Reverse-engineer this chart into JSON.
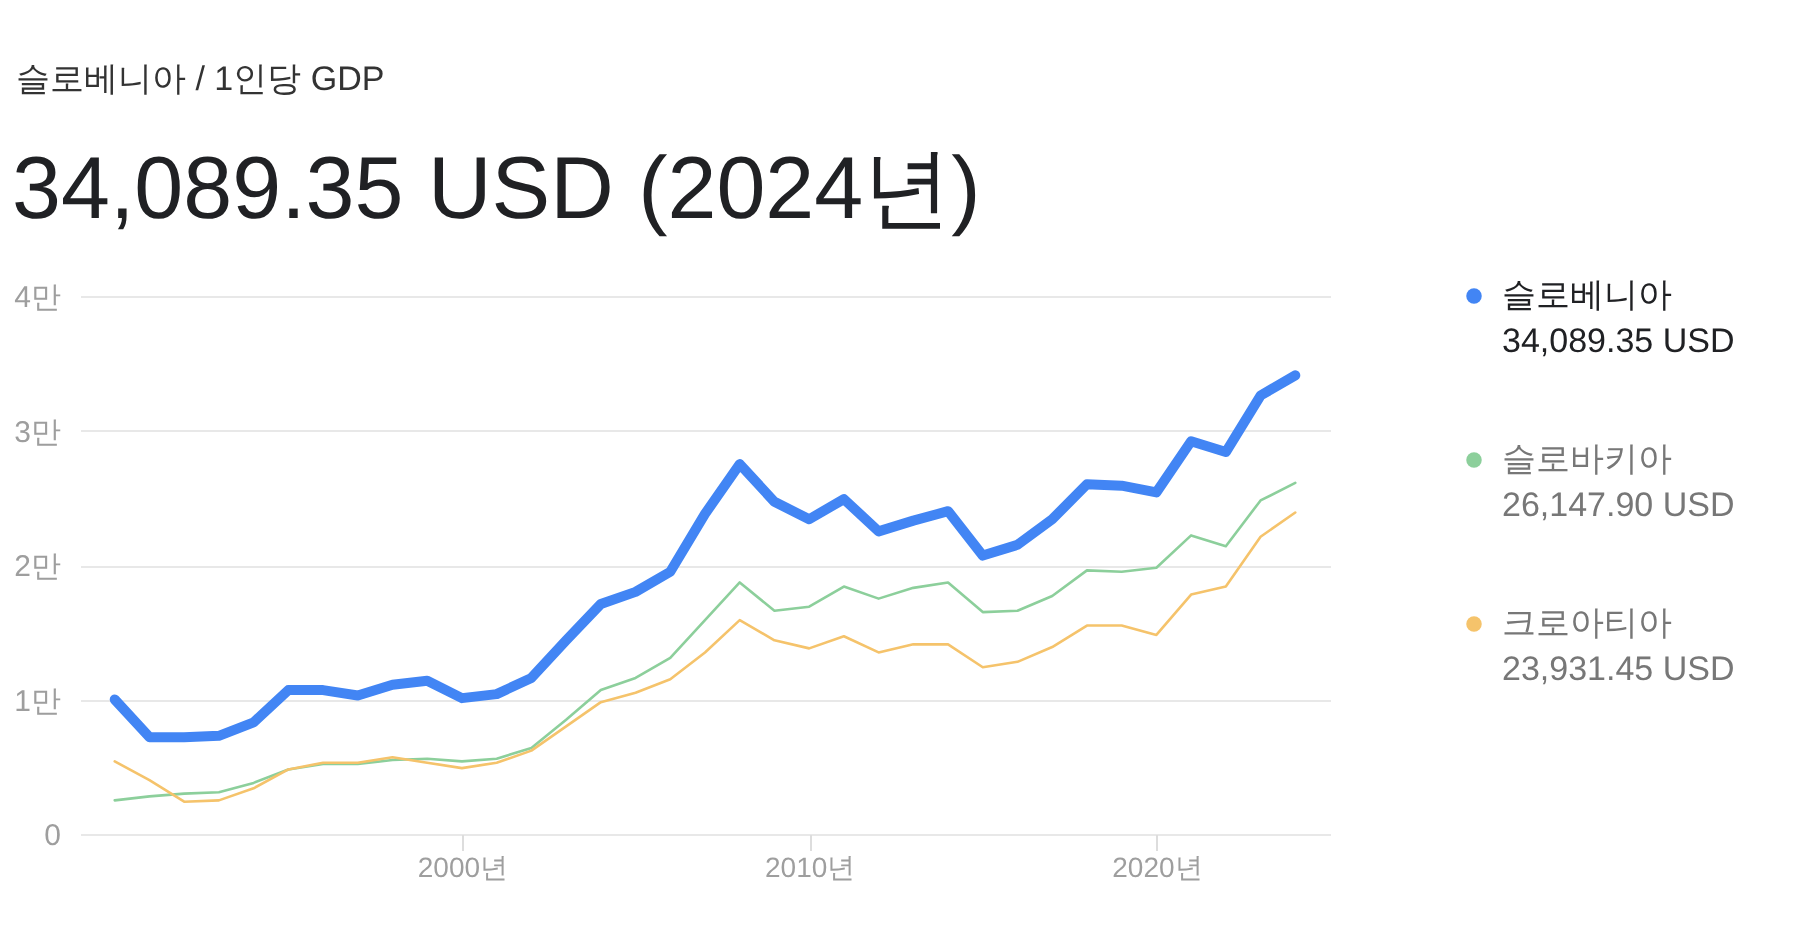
{
  "chart_data": {
    "type": "line",
    "subtitle": "슬로베니아 / 1인당 GDP",
    "title": "34,089.35 USD (2024년)",
    "x": [
      1990,
      1991,
      1992,
      1993,
      1994,
      1995,
      1996,
      1997,
      1998,
      1999,
      2000,
      2001,
      2002,
      2003,
      2004,
      2005,
      2006,
      2007,
      2008,
      2009,
      2010,
      2011,
      2012,
      2013,
      2014,
      2015,
      2016,
      2017,
      2018,
      2019,
      2020,
      2021,
      2022,
      2023,
      2024
    ],
    "series": [
      {
        "name": "슬로베니아",
        "color": "#4285f4",
        "values": [
          1.0,
          0.72,
          0.72,
          0.73,
          0.83,
          1.07,
          1.07,
          1.03,
          1.11,
          1.14,
          1.01,
          1.04,
          1.16,
          1.44,
          1.71,
          1.8,
          1.95,
          2.38,
          2.75,
          2.47,
          2.34,
          2.49,
          2.25,
          2.33,
          2.4,
          2.07,
          2.15,
          2.34,
          2.6,
          2.59,
          2.54,
          2.92,
          2.84,
          3.26,
          3.41
        ]
      },
      {
        "name": "슬로바키아",
        "color": "#8ccf9b",
        "values": [
          0.25,
          0.28,
          0.3,
          0.31,
          0.38,
          0.48,
          0.52,
          0.52,
          0.55,
          0.56,
          0.54,
          0.56,
          0.64,
          0.85,
          1.07,
          1.16,
          1.31,
          1.59,
          1.87,
          1.66,
          1.69,
          1.84,
          1.75,
          1.83,
          1.87,
          1.65,
          1.66,
          1.77,
          1.96,
          1.95,
          1.98,
          2.22,
          2.14,
          2.48,
          2.61
        ]
      },
      {
        "name": "크로아티아",
        "color": "#f5c36b",
        "values": [
          0.54,
          0.4,
          0.24,
          0.25,
          0.34,
          0.48,
          0.53,
          0.53,
          0.57,
          0.53,
          0.49,
          0.53,
          0.62,
          0.8,
          0.98,
          1.05,
          1.15,
          1.35,
          1.59,
          1.44,
          1.38,
          1.47,
          1.35,
          1.41,
          1.41,
          1.24,
          1.28,
          1.39,
          1.55,
          1.55,
          1.48,
          1.78,
          1.84,
          2.21,
          2.39
        ]
      }
    ],
    "xlim": [
      1989,
      2025
    ],
    "xticks": [
      {
        "value": 2000,
        "label": "2000년"
      },
      {
        "value": 2010,
        "label": "2010년"
      },
      {
        "value": 2020,
        "label": "2020년"
      }
    ],
    "ylim": [
      0,
      4
    ],
    "yticks": [
      0,
      {
        "value": 1,
        "label": "1만"
      },
      {
        "value": 2,
        "label": "2만"
      },
      {
        "value": 3,
        "label": "3만"
      },
      {
        "value": 4,
        "label": "4만"
      }
    ],
    "annotations": [
      "34,089.35 USD",
      "26,147.90 USD",
      "23,931.45 USD"
    ],
    "grid": "y",
    "legend": "right",
    "line_style": "solid",
    "marker": "none"
  }
}
